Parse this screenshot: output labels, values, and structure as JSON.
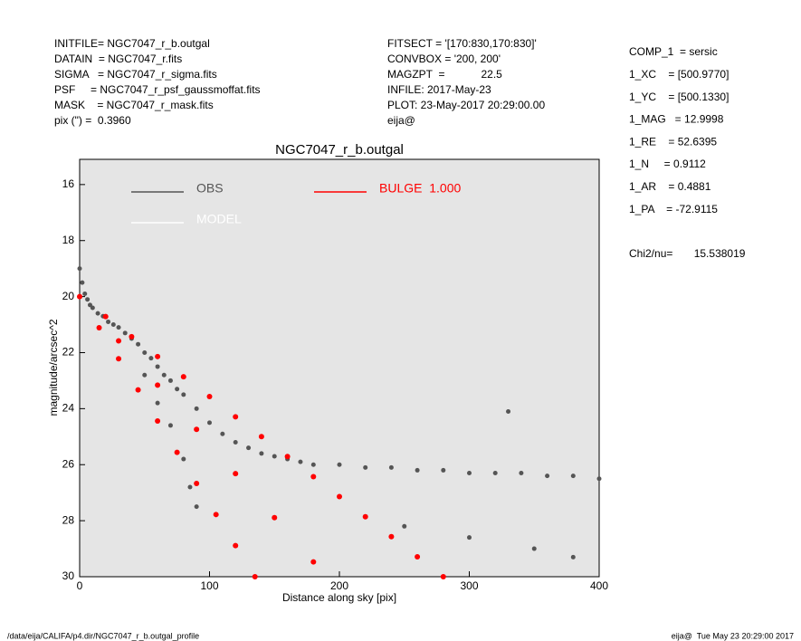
{
  "header": {
    "left": [
      "INITFILE= NGC7047_r_b.outgal",
      "DATAIN  = NGC7047_r.fits",
      "SIGMA   = NGC7047_r_sigma.fits",
      "PSF     = NGC7047_r_psf_gaussmoffat.fits",
      "MASK    = NGC7047_r_mask.fits",
      "pix (\") =  0.3960"
    ],
    "middle": [
      "FITSECT = '[170:830,170:830]'",
      "CONVBOX = '200, 200'",
      "MAGZPT  =            22.5",
      "INFILE: 2017-May-23",
      "PLOT: 23-May-2017 20:29:00.00",
      "eija@"
    ],
    "right": [
      "COMP_1  = sersic",
      "1_XC    = [500.9770]",
      "1_YC    = [500.1330]",
      "1_MAG   = 12.9998",
      "1_RE    = 52.6395",
      "1_N     = 0.9112",
      "1_AR    = 0.4881",
      "1_PA    = -72.9115"
    ],
    "chi2": "Chi2/nu=       15.538019"
  },
  "footer": {
    "left": "/data/eija/CALIFA/p4.dir/NGC7047_r_b.outgal_profile",
    "right": "eija@  Tue May 23 20:29:00 2017"
  },
  "chart_data": {
    "type": "scatter",
    "title": "NGC7047_r_b.outgal",
    "xlabel": "Distance along sky [pix]",
    "ylabel": "magnitude/arcsec^2",
    "xlim": [
      0,
      400
    ],
    "xticks": [
      0,
      100,
      200,
      300,
      400
    ],
    "ylim": [
      30,
      15.1
    ],
    "yticks": [
      16,
      18,
      20,
      22,
      24,
      26,
      28,
      30
    ],
    "legend_extra": {
      "name": "MODEL",
      "color": "#ffffff"
    },
    "series": [
      {
        "name": "OBS",
        "color": "#555555",
        "x": [
          0,
          2,
          4,
          6,
          8,
          10,
          14,
          18,
          22,
          26,
          30,
          35,
          40,
          45,
          50,
          55,
          60,
          65,
          70,
          75,
          80,
          90,
          100,
          110,
          120,
          130,
          140,
          150,
          160,
          170,
          180,
          200,
          220,
          240,
          260,
          280,
          300,
          320,
          340,
          360,
          380,
          400,
          50,
          60,
          70,
          80,
          85,
          90,
          250,
          300,
          350,
          380,
          330
        ],
        "values": [
          19.0,
          19.5,
          19.9,
          20.1,
          20.3,
          20.4,
          20.6,
          20.7,
          20.9,
          21.0,
          21.1,
          21.3,
          21.5,
          21.7,
          22.0,
          22.2,
          22.5,
          22.8,
          23.0,
          23.3,
          23.5,
          24.0,
          24.5,
          24.9,
          25.2,
          25.4,
          25.6,
          25.7,
          25.8,
          25.9,
          26.0,
          26.0,
          26.1,
          26.1,
          26.2,
          26.2,
          26.3,
          26.3,
          26.3,
          26.4,
          26.4,
          26.5,
          22.8,
          23.8,
          24.6,
          25.8,
          26.8,
          27.5,
          28.2,
          28.6,
          29.0,
          29.3,
          24.1
        ]
      },
      {
        "name": "BULGE  1.000",
        "color": "#ff0000",
        "x": [
          0,
          20,
          40,
          60,
          80,
          100,
          120,
          140,
          160,
          180,
          200,
          220,
          240,
          260,
          280,
          15,
          30,
          45,
          60,
          75,
          90,
          105,
          120,
          135,
          30,
          60,
          90,
          120,
          150,
          180
        ],
        "values": [
          20,
          20.71,
          21.43,
          22.14,
          22.86,
          23.57,
          24.29,
          25,
          25.71,
          26.43,
          27.14,
          27.86,
          28.57,
          29.29,
          30,
          21.11,
          22.22,
          23.33,
          24.44,
          25.56,
          26.67,
          27.78,
          28.89,
          30,
          21.58,
          23.16,
          24.74,
          26.32,
          27.89,
          29.47
        ]
      }
    ]
  }
}
